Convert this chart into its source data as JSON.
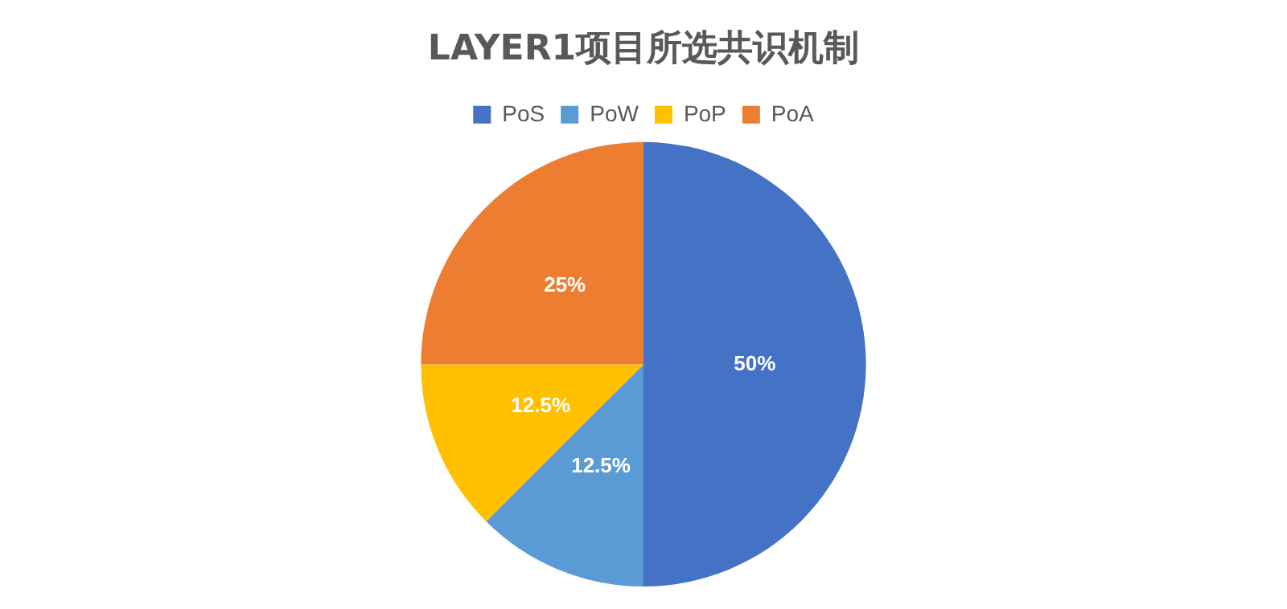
{
  "chart_data": {
    "type": "pie",
    "title": "LAYER1项目所选共识机制",
    "categories": [
      "PoS",
      "PoW",
      "PoP",
      "PoA"
    ],
    "values": [
      50,
      12.5,
      12.5,
      25
    ],
    "value_labels": [
      "50%",
      "12.5%",
      "12.5%",
      "25%"
    ],
    "colors": [
      "#4472c4",
      "#5b9bd5",
      "#ffc000",
      "#ed7d31"
    ],
    "legend": "top"
  }
}
